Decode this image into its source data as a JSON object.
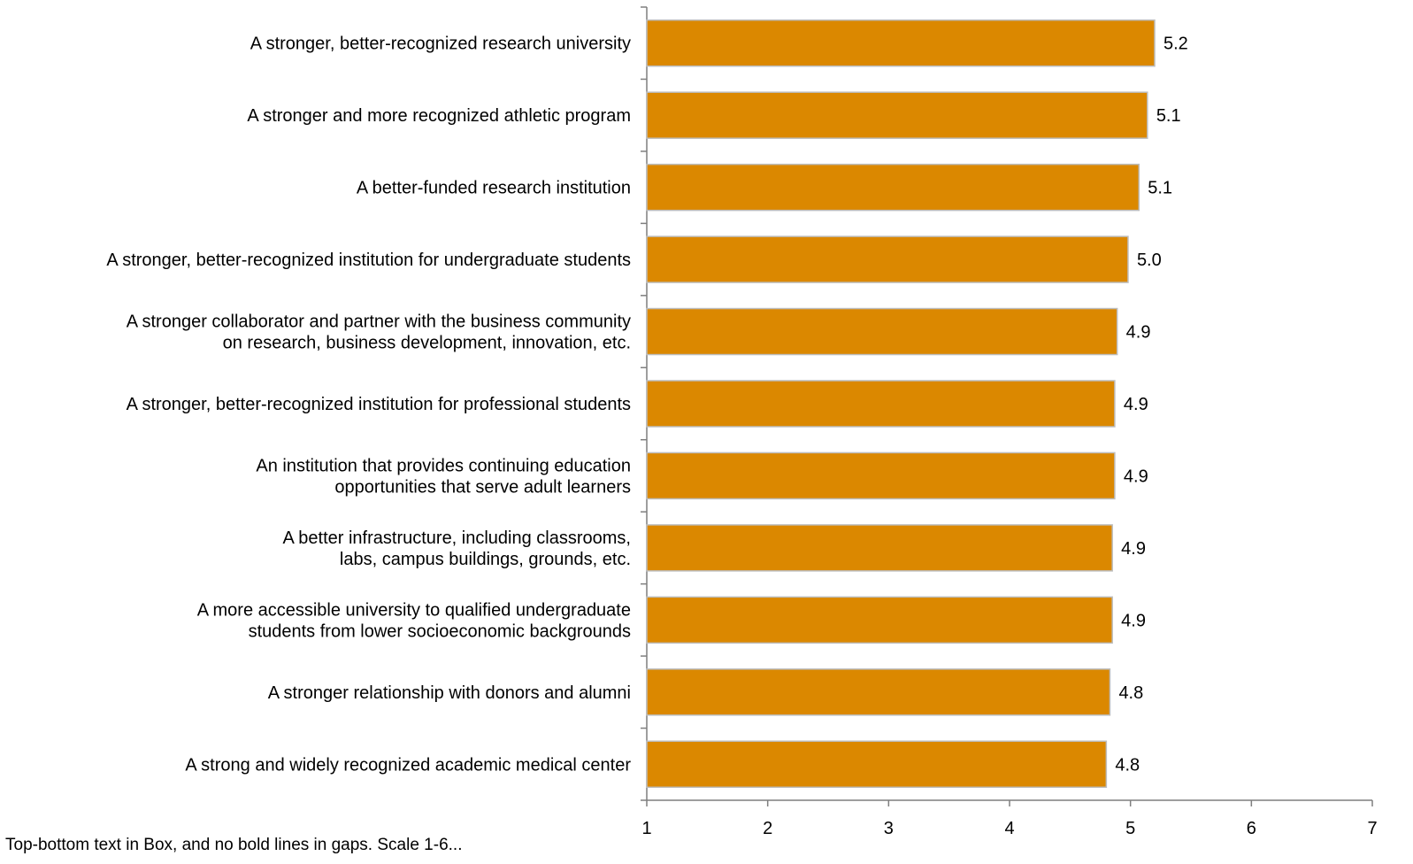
{
  "chart_data": {
    "type": "bar",
    "orientation": "horizontal",
    "categories": [
      [
        "A stronger, better-recognized research university"
      ],
      [
        "A stronger and more recognized athletic program"
      ],
      [
        "A better-funded research institution"
      ],
      [
        "A stronger, better-recognized institution for undergraduate students"
      ],
      [
        "A stronger collaborator and partner with the business community",
        "on research, business development, innovation, etc."
      ],
      [
        "A stronger, better-recognized institution for professional students"
      ],
      [
        "An institution that provides continuing education",
        "opportunities that serve adult learners"
      ],
      [
        "A better infrastructure, including classrooms,",
        "labs, campus buildings, grounds, etc."
      ],
      [
        "A more accessible university to qualified undergraduate",
        "students from lower socioeconomic backgrounds"
      ],
      [
        "A stronger relationship with donors and alumni"
      ],
      [
        "A strong and widely recognized academic medical center"
      ]
    ],
    "values": [
      5.2,
      5.14,
      5.07,
      4.98,
      4.89,
      4.87,
      4.87,
      4.85,
      4.85,
      4.83,
      4.8
    ],
    "value_labels": [
      "5.2",
      "5.1",
      "5.1",
      "5.0",
      "4.9",
      "4.9",
      "4.9",
      "4.9",
      "4.9",
      "4.8",
      "4.8"
    ],
    "xlim": [
      1,
      7
    ],
    "x_ticks": [
      "1",
      "2",
      "3",
      "4",
      "5",
      "6",
      "7"
    ],
    "bar_color": "#DB8800",
    "bar_edge_color": "#BDBDBD",
    "axis_color": "#7F7F7F",
    "grid": false,
    "title": "",
    "xlabel": "",
    "ylabel": ""
  },
  "footnote": "Top-bottom text in Box, and no bold lines in gaps. Scale 1-6..."
}
